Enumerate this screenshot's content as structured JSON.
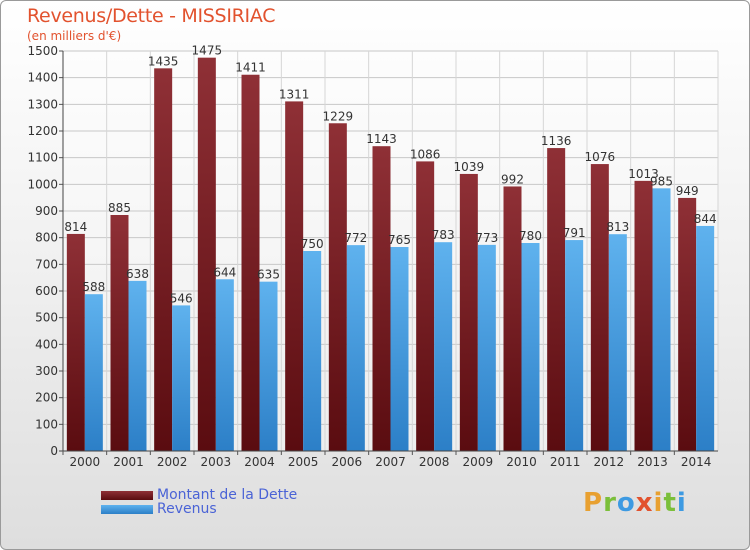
{
  "title": "Revenus/Dette - MISSIRIAC",
  "subtitle": "(en milliers d'€)",
  "brand": "Proxiti",
  "colors": {
    "dette": "#7a1d22",
    "revenus": "#3d9ae2",
    "title": "#e2522e",
    "legend_text": "#4a63d6"
  },
  "chart_data": {
    "type": "bar",
    "categories": [
      "2000",
      "2001",
      "2002",
      "2003",
      "2004",
      "2005",
      "2006",
      "2007",
      "2008",
      "2009",
      "2010",
      "2011",
      "2012",
      "2013",
      "2014"
    ],
    "series": [
      {
        "name": "Montant de la Dette",
        "values": [
          814,
          885,
          1435,
          1475,
          1411,
          1311,
          1229,
          1143,
          1086,
          1039,
          992,
          1136,
          1076,
          1013,
          949
        ]
      },
      {
        "name": "Revenus",
        "values": [
          588,
          638,
          546,
          644,
          635,
          750,
          772,
          765,
          783,
          773,
          780,
          791,
          813,
          985,
          844
        ]
      }
    ],
    "ylim": [
      0,
      1500
    ],
    "yticks": [
      0,
      100,
      200,
      300,
      400,
      500,
      600,
      700,
      800,
      900,
      1000,
      1100,
      1200,
      1300,
      1400,
      1500
    ],
    "grid": true,
    "legend_position": "bottom-left"
  }
}
